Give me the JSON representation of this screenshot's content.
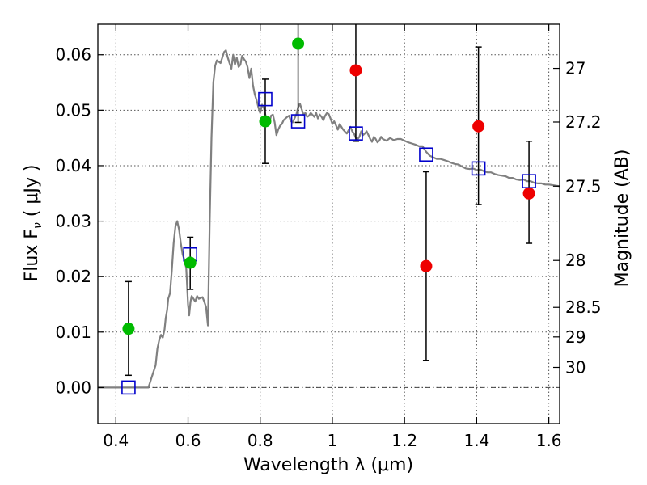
{
  "chart_data": {
    "type": "scatter",
    "xlabel": "Wavelength  λ (μm)",
    "ylabel": "Flux  F",
    "ylabel_sub": "ν",
    "ylabel_unit": "( μJy )",
    "y2label": "Magnitude (AB)",
    "xlim": [
      0.35,
      1.63
    ],
    "ylim": [
      -0.0065,
      0.0655
    ],
    "grid": true,
    "x_ticks": [
      {
        "value": 0.4,
        "label": "0.4"
      },
      {
        "value": 0.6,
        "label": "0.6"
      },
      {
        "value": 0.8,
        "label": "0.8"
      },
      {
        "value": 1.0,
        "label": "1"
      },
      {
        "value": 1.2,
        "label": "1.2"
      },
      {
        "value": 1.4,
        "label": "1.4"
      },
      {
        "value": 1.6,
        "label": "1.6"
      }
    ],
    "y_ticks": [
      {
        "value": 0.0,
        "label": "0.00"
      },
      {
        "value": 0.01,
        "label": "0.01"
      },
      {
        "value": 0.02,
        "label": "0.02"
      },
      {
        "value": 0.03,
        "label": "0.03"
      },
      {
        "value": 0.04,
        "label": "0.04"
      },
      {
        "value": 0.05,
        "label": "0.05"
      },
      {
        "value": 0.06,
        "label": "0.06"
      }
    ],
    "y2_ticks": [
      {
        "mag": 27.0,
        "label": "27"
      },
      {
        "mag": 27.2,
        "label": "27.2"
      },
      {
        "mag": 27.5,
        "label": "27.5"
      },
      {
        "mag": 28.0,
        "label": "28"
      },
      {
        "mag": 28.5,
        "label": "28.5"
      },
      {
        "mag": 29.0,
        "label": "29"
      },
      {
        "mag": 30.0,
        "label": "30"
      }
    ],
    "colors": {
      "model": "#808080",
      "green": "#00bb00",
      "red": "#ee0000",
      "square": "#0000cc",
      "errorbar": "#000000",
      "grid": "#555555"
    },
    "series": [
      {
        "kind": "model_spectrum",
        "points": [
          [
            0.35,
            0.0
          ],
          [
            0.48,
            0.0
          ],
          [
            0.49,
            0.0
          ],
          [
            0.5,
            0.002
          ],
          [
            0.51,
            0.004
          ],
          [
            0.515,
            0.007
          ],
          [
            0.52,
            0.0085
          ],
          [
            0.525,
            0.0095
          ],
          [
            0.53,
            0.009
          ],
          [
            0.535,
            0.0105
          ],
          [
            0.538,
            0.0125
          ],
          [
            0.542,
            0.014
          ],
          [
            0.545,
            0.016
          ],
          [
            0.55,
            0.017
          ],
          [
            0.555,
            0.021
          ],
          [
            0.56,
            0.026
          ],
          [
            0.565,
            0.029
          ],
          [
            0.57,
            0.03
          ],
          [
            0.575,
            0.0285
          ],
          [
            0.58,
            0.026
          ],
          [
            0.585,
            0.024
          ],
          [
            0.59,
            0.023
          ],
          [
            0.595,
            0.0215
          ],
          [
            0.6,
            0.015
          ],
          [
            0.603,
            0.013
          ],
          [
            0.607,
            0.0155
          ],
          [
            0.61,
            0.0165
          ],
          [
            0.615,
            0.016
          ],
          [
            0.62,
            0.0155
          ],
          [
            0.625,
            0.0165
          ],
          [
            0.63,
            0.016
          ],
          [
            0.64,
            0.0163
          ],
          [
            0.645,
            0.0155
          ],
          [
            0.65,
            0.0145
          ],
          [
            0.655,
            0.0112
          ],
          [
            0.66,
            0.03
          ],
          [
            0.665,
            0.045
          ],
          [
            0.67,
            0.055
          ],
          [
            0.675,
            0.058
          ],
          [
            0.68,
            0.059
          ],
          [
            0.69,
            0.0585
          ],
          [
            0.7,
            0.0605
          ],
          [
            0.705,
            0.0608
          ],
          [
            0.71,
            0.0595
          ],
          [
            0.715,
            0.0585
          ],
          [
            0.72,
            0.0575
          ],
          [
            0.725,
            0.06
          ],
          [
            0.73,
            0.0582
          ],
          [
            0.735,
            0.0595
          ],
          [
            0.74,
            0.0578
          ],
          [
            0.745,
            0.0582
          ],
          [
            0.75,
            0.0598
          ],
          [
            0.755,
            0.0592
          ],
          [
            0.76,
            0.0588
          ],
          [
            0.765,
            0.0578
          ],
          [
            0.77,
            0.0558
          ],
          [
            0.775,
            0.0575
          ],
          [
            0.78,
            0.0545
          ],
          [
            0.785,
            0.0528
          ],
          [
            0.79,
            0.0518
          ],
          [
            0.795,
            0.0505
          ],
          [
            0.8,
            0.0495
          ],
          [
            0.805,
            0.051
          ],
          [
            0.81,
            0.0505
          ],
          [
            0.815,
            0.049
          ],
          [
            0.82,
            0.0475
          ],
          [
            0.825,
            0.0475
          ],
          [
            0.83,
            0.049
          ],
          [
            0.835,
            0.0492
          ],
          [
            0.84,
            0.0478
          ],
          [
            0.845,
            0.0455
          ],
          [
            0.85,
            0.0465
          ],
          [
            0.855,
            0.0472
          ],
          [
            0.86,
            0.0475
          ],
          [
            0.865,
            0.0482
          ],
          [
            0.87,
            0.0485
          ],
          [
            0.875,
            0.0488
          ],
          [
            0.88,
            0.049
          ],
          [
            0.885,
            0.048
          ],
          [
            0.89,
            0.0478
          ],
          [
            0.895,
            0.0485
          ],
          [
            0.9,
            0.0492
          ],
          [
            0.905,
            0.0505
          ],
          [
            0.91,
            0.0512
          ],
          [
            0.915,
            0.0502
          ],
          [
            0.92,
            0.0492
          ],
          [
            0.925,
            0.0495
          ],
          [
            0.93,
            0.0488
          ],
          [
            0.935,
            0.049
          ],
          [
            0.94,
            0.0495
          ],
          [
            0.95,
            0.0488
          ],
          [
            0.955,
            0.0495
          ],
          [
            0.96,
            0.0485
          ],
          [
            0.965,
            0.0492
          ],
          [
            0.97,
            0.0488
          ],
          [
            0.975,
            0.0482
          ],
          [
            0.98,
            0.049
          ],
          [
            0.985,
            0.0495
          ],
          [
            0.99,
            0.0493
          ],
          [
            0.995,
            0.0485
          ],
          [
            1.0,
            0.0475
          ],
          [
            1.005,
            0.048
          ],
          [
            1.01,
            0.0473
          ],
          [
            1.015,
            0.0465
          ],
          [
            1.02,
            0.0475
          ],
          [
            1.025,
            0.047
          ],
          [
            1.03,
            0.0465
          ],
          [
            1.04,
            0.0458
          ],
          [
            1.05,
            0.047
          ],
          [
            1.055,
            0.0462
          ],
          [
            1.06,
            0.0458
          ],
          [
            1.065,
            0.045
          ],
          [
            1.07,
            0.0448
          ],
          [
            1.075,
            0.0452
          ],
          [
            1.08,
            0.0462
          ],
          [
            1.085,
            0.0455
          ],
          [
            1.09,
            0.0458
          ],
          [
            1.095,
            0.0462
          ],
          [
            1.1,
            0.0455
          ],
          [
            1.105,
            0.0448
          ],
          [
            1.11,
            0.0443
          ],
          [
            1.115,
            0.0452
          ],
          [
            1.12,
            0.0448
          ],
          [
            1.125,
            0.0442
          ],
          [
            1.13,
            0.0445
          ],
          [
            1.135,
            0.0452
          ],
          [
            1.14,
            0.0448
          ],
          [
            1.15,
            0.0445
          ],
          [
            1.16,
            0.045
          ],
          [
            1.17,
            0.0446
          ],
          [
            1.18,
            0.0448
          ],
          [
            1.19,
            0.0448
          ],
          [
            1.2,
            0.0445
          ],
          [
            1.21,
            0.0442
          ],
          [
            1.22,
            0.044
          ],
          [
            1.23,
            0.0438
          ],
          [
            1.24,
            0.0435
          ],
          [
            1.25,
            0.0435
          ],
          [
            1.26,
            0.0425
          ],
          [
            1.27,
            0.0418
          ],
          [
            1.28,
            0.0415
          ],
          [
            1.29,
            0.0412
          ],
          [
            1.3,
            0.0412
          ],
          [
            1.31,
            0.041
          ],
          [
            1.32,
            0.0408
          ],
          [
            1.33,
            0.0405
          ],
          [
            1.34,
            0.0403
          ],
          [
            1.35,
            0.0402
          ],
          [
            1.36,
            0.0398
          ],
          [
            1.37,
            0.0395
          ],
          [
            1.38,
            0.0394
          ],
          [
            1.39,
            0.0395
          ],
          [
            1.4,
            0.0392
          ],
          [
            1.41,
            0.0393
          ],
          [
            1.42,
            0.039
          ],
          [
            1.43,
            0.0388
          ],
          [
            1.44,
            0.0388
          ],
          [
            1.45,
            0.0385
          ],
          [
            1.46,
            0.0383
          ],
          [
            1.47,
            0.0382
          ],
          [
            1.48,
            0.0381
          ],
          [
            1.49,
            0.0378
          ],
          [
            1.5,
            0.0378
          ],
          [
            1.51,
            0.0375
          ],
          [
            1.52,
            0.0374
          ],
          [
            1.53,
            0.0375
          ],
          [
            1.54,
            0.0372
          ],
          [
            1.55,
            0.0372
          ],
          [
            1.56,
            0.0369
          ],
          [
            1.57,
            0.0368
          ],
          [
            1.58,
            0.0368
          ],
          [
            1.59,
            0.0366
          ],
          [
            1.6,
            0.0366
          ],
          [
            1.61,
            0.0365
          ],
          [
            1.62,
            0.0364
          ],
          [
            1.63,
            0.0363
          ]
        ]
      },
      {
        "kind": "model_photometry_squares",
        "points": [
          {
            "x": 0.435,
            "y": 0.0
          },
          {
            "x": 0.606,
            "y": 0.024
          },
          {
            "x": 0.814,
            "y": 0.052
          },
          {
            "x": 0.905,
            "y": 0.048
          },
          {
            "x": 1.065,
            "y": 0.0458
          },
          {
            "x": 1.26,
            "y": 0.042
          },
          {
            "x": 1.405,
            "y": 0.0395
          },
          {
            "x": 1.545,
            "y": 0.0372
          }
        ]
      },
      {
        "kind": "observed_green",
        "points": [
          {
            "x": 0.435,
            "y": 0.0106,
            "err_lo": 0.0084,
            "err_hi": 0.0085
          },
          {
            "x": 0.606,
            "y": 0.0225,
            "err_lo": 0.0048,
            "err_hi": 0.0046
          },
          {
            "x": 0.814,
            "y": 0.048,
            "err_lo": 0.0076,
            "err_hi": 0.0076
          },
          {
            "x": 0.905,
            "y": 0.062,
            "err_lo": 0.0142,
            "err_hi": 0.004
          }
        ]
      },
      {
        "kind": "observed_red",
        "points": [
          {
            "x": 1.065,
            "y": 0.0572,
            "err_lo": 0.0128,
            "err_hi": 0.009
          },
          {
            "x": 1.26,
            "y": 0.0219,
            "err_lo": 0.017,
            "err_hi": 0.017
          },
          {
            "x": 1.405,
            "y": 0.0471,
            "err_lo": 0.0141,
            "err_hi": 0.0143
          },
          {
            "x": 1.545,
            "y": 0.035,
            "err_lo": 0.009,
            "err_hi": 0.0094
          }
        ]
      }
    ]
  }
}
